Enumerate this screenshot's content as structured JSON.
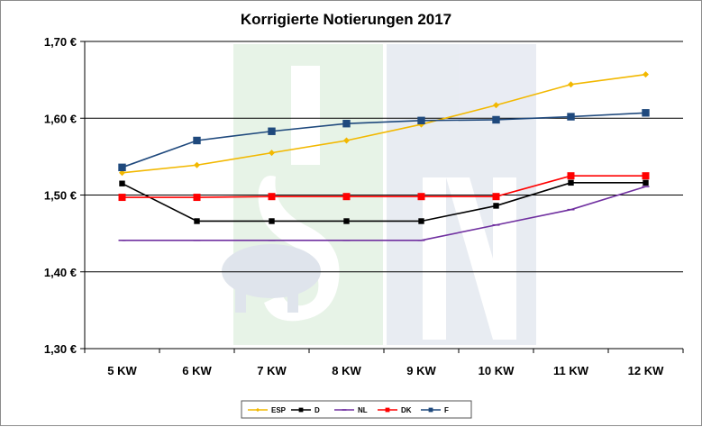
{
  "chart_data": {
    "type": "line",
    "title": "Korrigierte Notierungen 2017",
    "xlabel": "",
    "ylabel": "",
    "categories": [
      "5 KW",
      "6 KW",
      "7 KW",
      "8 KW",
      "9 KW",
      "10 KW",
      "11 KW",
      "12 KW"
    ],
    "ylim": [
      1.3,
      1.7
    ],
    "yticks": [
      1.3,
      1.4,
      1.5,
      1.6,
      1.7
    ],
    "ytick_labels": [
      "1,30 €",
      "1,40 €",
      "1,50 €",
      "1,60 €",
      "1,70 €"
    ],
    "grid": "horizontal",
    "legend_position": "bottom",
    "series": [
      {
        "name": "ESP",
        "color": "#f2b800",
        "marker": "diamond",
        "values": [
          1.529,
          1.539,
          1.555,
          1.571,
          1.592,
          1.617,
          1.644,
          1.657
        ]
      },
      {
        "name": "D",
        "color": "#000000",
        "marker": "square",
        "values": [
          1.515,
          1.466,
          1.466,
          1.466,
          1.466,
          1.486,
          1.516,
          1.516
        ]
      },
      {
        "name": "NL",
        "color": "#7030a0",
        "marker": "dash",
        "values": [
          1.441,
          1.441,
          1.441,
          1.441,
          1.441,
          1.461,
          1.481,
          1.511
        ]
      },
      {
        "name": "DK",
        "color": "#ff0000",
        "marker": "square",
        "values": [
          1.497,
          1.497,
          1.498,
          1.498,
          1.498,
          1.498,
          1.525,
          1.525
        ]
      },
      {
        "name": "F",
        "color": "#1f497d",
        "marker": "square",
        "values": [
          1.536,
          1.571,
          1.583,
          1.593,
          1.597,
          1.598,
          1.602,
          1.607
        ]
      }
    ]
  }
}
